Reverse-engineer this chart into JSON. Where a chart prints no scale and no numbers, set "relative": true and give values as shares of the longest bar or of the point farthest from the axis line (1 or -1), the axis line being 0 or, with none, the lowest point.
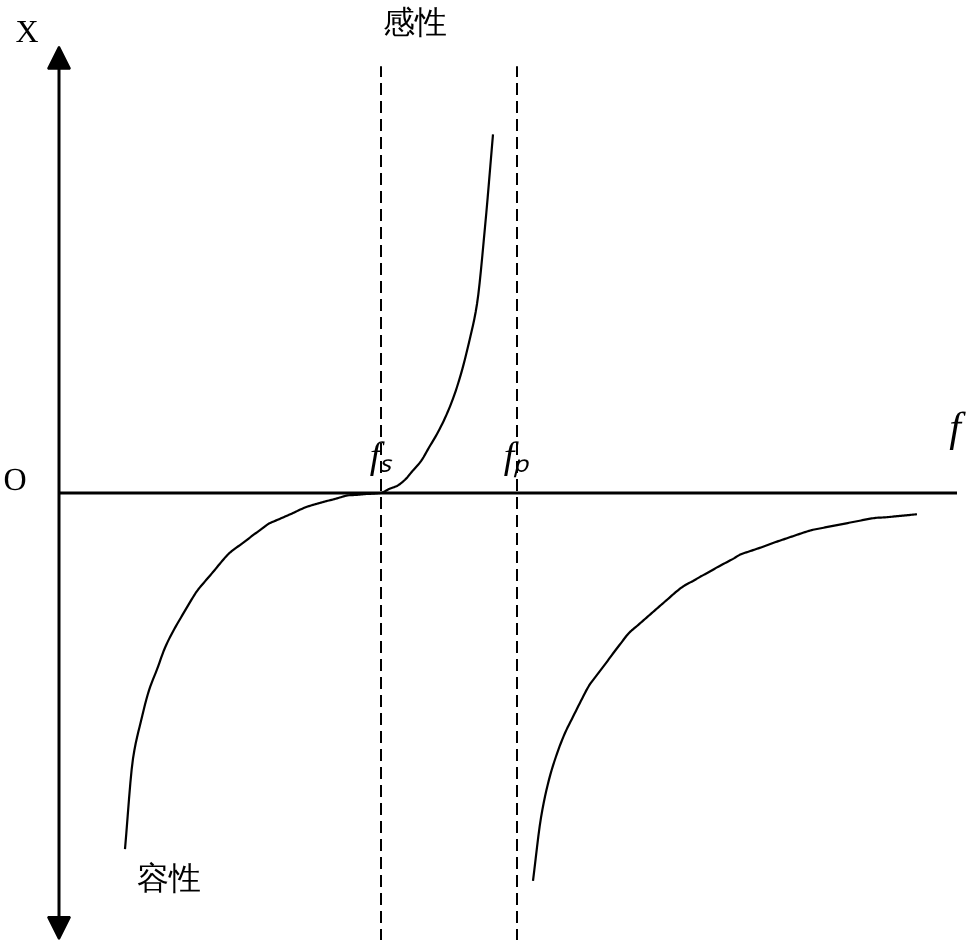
{
  "chart_data": {
    "type": "line",
    "relative": true,
    "xlabel": "f",
    "ylabel": "X",
    "categories": [
      null,
      null,
      null,
      null,
      null,
      null,
      null,
      null,
      null,
      null,
      null,
      null,
      null,
      null,
      null,
      null,
      null,
      null,
      null,
      null,
      null,
      null,
      null,
      null,
      null,
      null,
      null,
      null,
      null,
      null,
      null,
      null,
      "fₛ",
      null,
      null,
      null,
      null,
      null,
      null,
      null,
      null,
      null,
      null,
      null,
      null,
      null,
      null,
      null,
      null,
      "fₚ",
      null,
      null,
      null,
      null,
      null,
      null,
      null,
      null,
      null,
      null,
      null,
      null,
      null,
      null,
      null,
      null,
      null,
      null,
      null,
      null,
      null,
      null,
      null,
      null,
      null,
      null,
      null,
      null,
      null,
      null,
      null,
      null,
      null,
      null,
      null,
      null,
      null,
      null,
      null,
      null,
      null,
      null,
      null,
      null,
      null,
      null,
      null,
      null,
      null,
      null
    ],
    "series": [
      {
        "color": "#000000",
        "values": [
          -0.918,
          -0.685,
          -0.588,
          -0.509,
          -0.455,
          -0.399,
          -0.357,
          -0.321,
          -0.286,
          -0.253,
          -0.228,
          -0.204,
          -0.179,
          -0.156,
          -0.14,
          -0.125,
          -0.109,
          -0.094,
          -0.079,
          -0.07,
          -0.061,
          -0.052,
          -0.042,
          -0.034,
          -0.028,
          -0.022,
          -0.017,
          -0.011,
          -0.006,
          -0.005,
          -0.003,
          -0.002,
          0,
          0.01,
          0.018,
          0.034,
          0.058,
          0.082,
          0.117,
          0.152,
          0.193,
          0.243,
          0.307,
          0.388,
          0.487,
          0.685,
          0.924,
          null,
          null,
          null,
          null,
          -1,
          -0.837,
          -0.739,
          -0.672,
          -0.619,
          -0.577,
          -0.536,
          -0.497,
          -0.469,
          -0.442,
          -0.414,
          -0.387,
          -0.361,
          -0.343,
          -0.325,
          -0.307,
          -0.289,
          -0.271,
          -0.253,
          -0.238,
          -0.227,
          -0.215,
          -0.204,
          -0.192,
          -0.181,
          -0.17,
          -0.158,
          -0.151,
          -0.144,
          -0.137,
          -0.129,
          -0.122,
          -0.115,
          -0.108,
          -0.101,
          -0.095,
          -0.091,
          -0.087,
          -0.083,
          -0.079,
          -0.075,
          -0.071,
          -0.067,
          -0.064,
          -0.063,
          -0.061,
          -0.059,
          -0.057,
          -0.055
        ]
      }
    ],
    "ref_lines": [
      {
        "axis": "x",
        "value": "fₛ",
        "color": "#000000",
        "line_style": "dashed"
      },
      {
        "axis": "x",
        "value": "fₚ",
        "color": "#000000",
        "line_style": "dashed"
      }
    ],
    "annotations": [
      "感性",
      "容性",
      "O"
    ]
  }
}
